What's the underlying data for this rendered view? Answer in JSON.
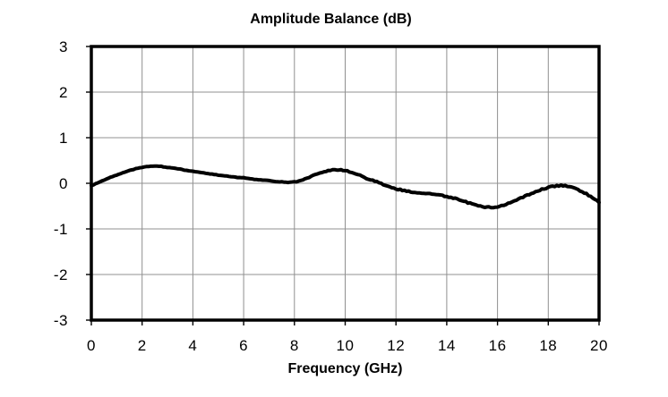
{
  "chart_data": {
    "type": "line",
    "title": "Amplitude Balance (dB)",
    "xlabel": "Frequency (GHz)",
    "ylabel": "",
    "xlim": [
      0,
      20
    ],
    "ylim": [
      -3,
      3
    ],
    "xticks": [
      0,
      2,
      4,
      6,
      8,
      10,
      12,
      14,
      16,
      18,
      20
    ],
    "yticks": [
      3,
      2,
      1,
      0,
      -1,
      -2,
      -3
    ],
    "grid": true,
    "legend": "none",
    "series": [
      {
        "name": "amplitude-balance",
        "color": "#000000",
        "x": [
          0,
          0.25,
          0.5,
          0.75,
          1,
          1.25,
          1.5,
          1.75,
          2,
          2.25,
          2.5,
          2.75,
          3,
          3.25,
          3.5,
          3.75,
          4,
          4.25,
          4.5,
          4.75,
          5,
          5.25,
          5.5,
          5.75,
          6,
          6.25,
          6.5,
          6.75,
          7,
          7.25,
          7.5,
          7.75,
          8,
          8.25,
          8.5,
          8.75,
          9,
          9.25,
          9.5,
          9.75,
          10,
          10.25,
          10.5,
          10.75,
          11,
          11.25,
          11.5,
          11.75,
          12,
          12.25,
          12.5,
          12.75,
          13,
          13.25,
          13.5,
          13.75,
          14,
          14.25,
          14.5,
          14.75,
          15,
          15.25,
          15.5,
          15.75,
          16,
          16.25,
          16.5,
          16.75,
          17,
          17.25,
          17.5,
          17.75,
          18,
          18.25,
          18.5,
          18.75,
          19,
          19.25,
          19.5,
          19.75,
          20
        ],
        "y": [
          -0.05,
          0.01,
          0.07,
          0.13,
          0.18,
          0.23,
          0.28,
          0.32,
          0.35,
          0.37,
          0.38,
          0.37,
          0.35,
          0.33,
          0.31,
          0.28,
          0.26,
          0.24,
          0.22,
          0.2,
          0.18,
          0.16,
          0.15,
          0.13,
          0.12,
          0.1,
          0.08,
          0.07,
          0.06,
          0.04,
          0.03,
          0.02,
          0.03,
          0.06,
          0.11,
          0.17,
          0.23,
          0.27,
          0.29,
          0.3,
          0.28,
          0.24,
          0.19,
          0.13,
          0.08,
          0.03,
          -0.02,
          -0.07,
          -0.12,
          -0.15,
          -0.18,
          -0.2,
          -0.22,
          -0.23,
          -0.24,
          -0.26,
          -0.29,
          -0.32,
          -0.36,
          -0.41,
          -0.45,
          -0.49,
          -0.52,
          -0.53,
          -0.52,
          -0.48,
          -0.43,
          -0.37,
          -0.3,
          -0.24,
          -0.18,
          -0.13,
          -0.09,
          -0.06,
          -0.05,
          -0.06,
          -0.1,
          -0.16,
          -0.23,
          -0.32,
          -0.42
        ]
      }
    ]
  },
  "style": {
    "background": "#ffffff",
    "grid_color": "#909090",
    "axis_color": "#000000",
    "text_color": "#000000",
    "line_color": "#000000"
  }
}
